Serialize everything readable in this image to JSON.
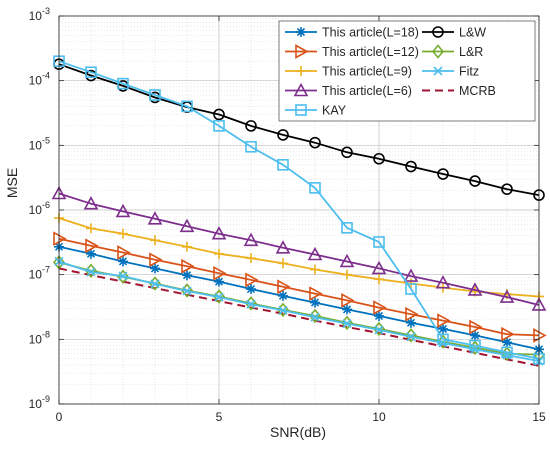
{
  "chart_data": {
    "type": "line",
    "xlabel": "SNR(dB)",
    "ylabel": "MSE",
    "xlim": [
      0,
      15
    ],
    "ylim": [
      1e-09,
      0.001
    ],
    "yscale": "log",
    "grid": true,
    "minor_grid": true,
    "legend_position": "top-right",
    "legend_columns": 2,
    "x_ticks": [
      0,
      5,
      10,
      15
    ],
    "y_ticks": [
      {
        "value": 1e-09,
        "base": "10",
        "exp": "-9"
      },
      {
        "value": 1e-08,
        "base": "10",
        "exp": "-8"
      },
      {
        "value": 1e-07,
        "base": "10",
        "exp": "-7"
      },
      {
        "value": 1e-06,
        "base": "10",
        "exp": "-6"
      },
      {
        "value": 1e-05,
        "base": "10",
        "exp": "-5"
      },
      {
        "value": 0.0001,
        "base": "10",
        "exp": "-4"
      },
      {
        "value": 0.001,
        "base": "10",
        "exp": "-3"
      }
    ],
    "x": [
      0,
      1,
      2,
      3,
      4,
      5,
      6,
      7,
      8,
      9,
      10,
      11,
      12,
      13,
      14,
      15
    ],
    "series": [
      {
        "name": "This article(L=18)",
        "color": "#0072BD",
        "marker": "asterisk",
        "values": [
          2.7e-07,
          2.1e-07,
          1.6e-07,
          1.25e-07,
          9.8e-08,
          7.8e-08,
          6e-08,
          4.7e-08,
          3.7e-08,
          2.9e-08,
          2.3e-08,
          1.8e-08,
          1.45e-08,
          1.15e-08,
          9e-09,
          7e-09
        ]
      },
      {
        "name": "This article(L=12)",
        "color": "#D95319",
        "marker": "triangle-right",
        "values": [
          3.6e-07,
          2.8e-07,
          2.2e-07,
          1.7e-07,
          1.35e-07,
          1.05e-07,
          8.3e-08,
          6.5e-08,
          5.1e-08,
          4e-08,
          3.1e-08,
          2.45e-08,
          1.95e-08,
          1.55e-08,
          1.2e-08,
          1.15e-08
        ]
      },
      {
        "name": "This article(L=9)",
        "color": "#EDB120",
        "marker": "plus",
        "values": [
          7.5e-07,
          5.2e-07,
          4.3e-07,
          3.4e-07,
          2.7e-07,
          2.1e-07,
          1.8e-07,
          1.5e-07,
          1.2e-07,
          1e-07,
          8.5e-08,
          7.3e-08,
          6.3e-08,
          5.5e-08,
          5e-08,
          4.6e-08
        ]
      },
      {
        "name": "This article(L=6)",
        "color": "#7E2F8E",
        "marker": "triangle-up",
        "values": [
          1.8e-06,
          1.25e-06,
          9.5e-07,
          7.3e-07,
          5.6e-07,
          4.3e-07,
          3.4e-07,
          2.6e-07,
          2.05e-07,
          1.6e-07,
          1.25e-07,
          9.5e-08,
          7.5e-08,
          5.8e-08,
          4.5e-08,
          3.4e-08
        ]
      },
      {
        "name": "KAY",
        "color": "#4DBEEE",
        "marker": "square",
        "values": [
          0.0002,
          0.000135,
          9e-05,
          6e-05,
          4e-05,
          2e-05,
          9.5e-06,
          5e-06,
          2.2e-06,
          5.3e-07,
          3.2e-07,
          6e-08,
          1e-08,
          8e-09,
          6.3e-09,
          5e-09
        ]
      },
      {
        "name": "L&W",
        "color": "#000000",
        "marker": "circle",
        "values": [
          0.00018,
          0.00012,
          8.3e-05,
          5.5e-05,
          3.9e-05,
          3e-05,
          2e-05,
          1.45e-05,
          1.1e-05,
          7.8e-06,
          6.2e-06,
          4.7e-06,
          3.6e-06,
          2.8e-06,
          2.1e-06,
          1.7e-06
        ]
      },
      {
        "name": "L&R",
        "color": "#77AC30",
        "marker": "diamond",
        "values": [
          1.55e-07,
          1.15e-07,
          9.3e-08,
          7.3e-08,
          5.7e-08,
          4.6e-08,
          3.6e-08,
          2.85e-08,
          2.3e-08,
          1.8e-08,
          1.45e-08,
          1.15e-08,
          9.2e-09,
          7.4e-09,
          6e-09,
          5.8e-09
        ]
      },
      {
        "name": "Fitz",
        "color": "#4DBEEE",
        "marker": "x",
        "values": [
          1.6e-07,
          1.1e-07,
          9.5e-08,
          7.2e-08,
          5.6e-08,
          4.5e-08,
          3.5e-08,
          2.8e-08,
          2.2e-08,
          1.75e-08,
          1.4e-08,
          1.1e-08,
          8.8e-09,
          7e-09,
          5.7e-09,
          4.6e-09
        ]
      },
      {
        "name": "MCRB",
        "color": "#A2142F",
        "marker": "none",
        "dashed": true,
        "values": [
          1.25e-07,
          9.8e-08,
          7.8e-08,
          6.2e-08,
          4.9e-08,
          3.9e-08,
          3.1e-08,
          2.5e-08,
          1.95e-08,
          1.55e-08,
          1.25e-08,
          9.8e-09,
          7.8e-09,
          6.2e-09,
          4.9e-09,
          3.9e-09
        ]
      }
    ]
  }
}
